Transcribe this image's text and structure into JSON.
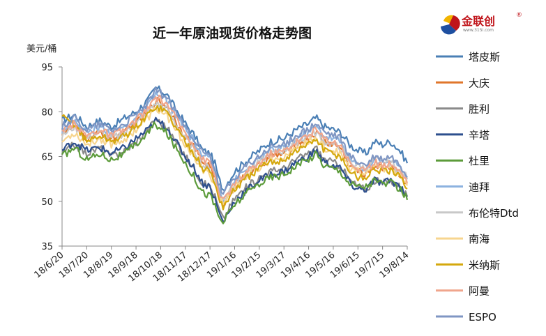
{
  "logo": {
    "name": "金联创",
    "reg_mark": "®",
    "url": "www.315i.com",
    "colors": [
      "#f2b400",
      "#c0151b",
      "#1e4fa0"
    ]
  },
  "chart_data": {
    "type": "line",
    "title": "近一年原油现货价格走势图",
    "ylabel": "美元/桶",
    "xlabel": "",
    "ylim": [
      35,
      95
    ],
    "yticks": [
      35,
      50,
      65,
      80,
      95
    ],
    "x_range": [
      "18/6/20",
      "19/8/14"
    ],
    "xticks": [
      "18/6/20",
      "18/7/20",
      "18/8/19",
      "18/9/18",
      "18/10/18",
      "18/11/17",
      "18/12/17",
      "19/1/16",
      "19/2/15",
      "19/3/17",
      "19/4/16",
      "19/5/16",
      "19/6/15",
      "19/7/15",
      "19/8/14"
    ],
    "grid": false,
    "legend_position": "right",
    "anchor_dates": [
      "18/6/20",
      "18/7/5",
      "18/7/20",
      "18/8/5",
      "18/8/19",
      "18/9/5",
      "18/9/18",
      "18/10/3",
      "18/10/12",
      "18/10/18",
      "18/10/25",
      "18/11/5",
      "18/11/17",
      "18/11/28",
      "18/12/8",
      "18/12/17",
      "18/12/24",
      "18/12/27",
      "19/1/2",
      "19/1/16",
      "19/2/1",
      "19/2/15",
      "19/3/1",
      "19/3/17",
      "19/4/1",
      "19/4/16",
      "19/4/25",
      "19/5/5",
      "19/5/16",
      "19/5/25",
      "19/6/5",
      "19/6/15",
      "19/6/25",
      "19/7/5",
      "19/7/15",
      "19/7/25",
      "19/8/5",
      "19/8/14"
    ],
    "series": [
      {
        "name": "塔皮斯",
        "color": "#4a7fb5",
        "values": [
          77,
          79,
          75,
          77,
          75,
          78,
          80,
          84,
          88,
          87,
          86,
          81,
          76,
          72,
          67,
          66,
          62,
          58,
          54,
          60,
          64,
          67,
          70,
          71,
          74,
          76,
          78,
          75,
          74,
          73,
          69,
          67,
          66,
          70,
          69,
          70,
          67,
          63
        ]
      },
      {
        "name": "大庆",
        "color": "#e0762b",
        "values": [
          73,
          75,
          71,
          73,
          71,
          73,
          76,
          80,
          84,
          83,
          82,
          77,
          72,
          68,
          63,
          62,
          57,
          53,
          49,
          55,
          59,
          62,
          65,
          66,
          69,
          71,
          73,
          70,
          69,
          68,
          62,
          60,
          59,
          62,
          61,
          62,
          59,
          56
        ]
      },
      {
        "name": "胜利",
        "color": "#8a8a8a",
        "values": [
          66,
          69,
          66,
          68,
          65,
          67,
          70,
          74,
          78,
          76,
          75,
          70,
          65,
          61,
          56,
          55,
          51,
          48,
          44,
          51,
          55,
          58,
          60,
          61,
          64,
          66,
          68,
          64,
          63,
          62,
          57,
          55,
          54,
          57,
          56,
          57,
          55,
          52
        ]
      },
      {
        "name": "辛塔",
        "color": "#2d4f8e",
        "values": [
          67,
          70,
          67,
          68,
          66,
          68,
          71,
          74,
          77,
          76,
          75,
          70,
          65,
          61,
          56,
          55,
          50,
          47,
          43,
          50,
          54,
          57,
          59,
          60,
          63,
          65,
          67,
          63,
          62,
          61,
          56,
          54,
          54,
          57,
          56,
          57,
          55,
          52
        ]
      },
      {
        "name": "杜里",
        "color": "#5c9b3a",
        "values": [
          65,
          68,
          64,
          66,
          64,
          66,
          69,
          73,
          76,
          74,
          73,
          68,
          63,
          58,
          53,
          52,
          48,
          45,
          43,
          49,
          53,
          56,
          58,
          59,
          62,
          64,
          66,
          62,
          61,
          60,
          56,
          55,
          55,
          57,
          56,
          56,
          54,
          51
        ]
      },
      {
        "name": "迪拜",
        "color": "#8cb2df",
        "values": [
          74,
          77,
          73,
          75,
          73,
          75,
          78,
          82,
          86,
          85,
          84,
          79,
          74,
          70,
          65,
          64,
          59,
          55,
          51,
          57,
          61,
          64,
          67,
          68,
          71,
          73,
          75,
          72,
          71,
          70,
          64,
          62,
          61,
          64,
          63,
          64,
          61,
          58
        ]
      },
      {
        "name": "布伦特Dtd",
        "color": "#c8c8c8",
        "values": [
          72,
          75,
          71,
          73,
          71,
          73,
          76,
          80,
          83,
          82,
          81,
          76,
          71,
          67,
          62,
          61,
          56,
          53,
          50,
          56,
          60,
          63,
          66,
          67,
          70,
          72,
          73,
          70,
          69,
          68,
          63,
          62,
          61,
          64,
          63,
          63,
          60,
          58
        ]
      },
      {
        "name": "南海",
        "color": "#f7d58f",
        "values": [
          70,
          73,
          69,
          71,
          69,
          71,
          74,
          78,
          81,
          80,
          79,
          74,
          69,
          65,
          60,
          59,
          55,
          52,
          49,
          55,
          59,
          61,
          64,
          65,
          68,
          70,
          71,
          68,
          67,
          66,
          61,
          60,
          59,
          62,
          61,
          61,
          59,
          56
        ]
      },
      {
        "name": "米纳斯",
        "color": "#d4a80d",
        "values": [
          78,
          76,
          70,
          72,
          70,
          72,
          75,
          79,
          82,
          81,
          80,
          75,
          70,
          66,
          61,
          60,
          55,
          52,
          48,
          54,
          58,
          61,
          63,
          64,
          67,
          69,
          71,
          67,
          66,
          65,
          60,
          58,
          58,
          61,
          60,
          60,
          58,
          55
        ]
      },
      {
        "name": "阿曼",
        "color": "#f0a58c",
        "values": [
          73,
          76,
          72,
          74,
          72,
          74,
          77,
          81,
          85,
          84,
          83,
          78,
          73,
          69,
          64,
          63,
          58,
          54,
          50,
          56,
          60,
          63,
          66,
          67,
          70,
          72,
          74,
          71,
          70,
          69,
          63,
          61,
          60,
          63,
          62,
          63,
          60,
          57
        ]
      },
      {
        "name": "ESPO",
        "color": "#7f96c3",
        "values": [
          75,
          78,
          74,
          76,
          74,
          76,
          79,
          83,
          87,
          86,
          85,
          80,
          75,
          71,
          66,
          65,
          60,
          56,
          52,
          58,
          62,
          65,
          68,
          69,
          72,
          74,
          76,
          73,
          72,
          71,
          65,
          63,
          62,
          65,
          64,
          65,
          62,
          59
        ]
      }
    ]
  }
}
